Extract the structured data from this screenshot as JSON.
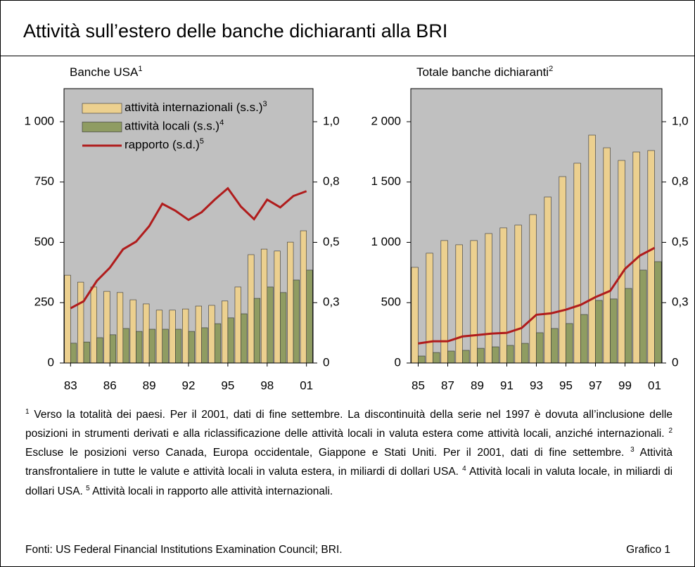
{
  "page_title": "Attività sull’estero delle banche dichiaranti alla BRI",
  "chart_data": [
    {
      "type": "bar-line",
      "title": "Banche USA",
      "title_note": "1",
      "legend": "upper left",
      "categories": [
        "83",
        null,
        null,
        "86",
        null,
        null,
        "89",
        null,
        null,
        "92",
        null,
        null,
        "95",
        null,
        null,
        "98",
        null,
        null,
        "01"
      ],
      "series": [
        {
          "name": "attività internazionali (s.s.)",
          "note": "3",
          "color": "#ecd08f",
          "kind": "bar",
          "values": [
            364,
            335,
            315,
            297,
            292,
            262,
            245,
            219,
            219,
            224,
            236,
            239,
            257,
            315,
            449,
            472,
            464,
            501,
            548
          ]
        },
        {
          "name": "attività locali (s.s.)",
          "note": "4",
          "color": "#8f9c62",
          "kind": "bar",
          "values": [
            82,
            87,
            105,
            117,
            143,
            131,
            140,
            140,
            140,
            131,
            146,
            163,
            187,
            204,
            268,
            315,
            292,
            344,
            385
          ]
        },
        {
          "name": "rapporto (s.d.)",
          "note": "5",
          "color": "#b01c1c",
          "kind": "line",
          "axis": "y2",
          "values": [
            0.227,
            0.256,
            0.34,
            0.395,
            0.471,
            0.503,
            0.567,
            0.66,
            0.631,
            0.593,
            0.625,
            0.677,
            0.724,
            0.648,
            0.596,
            0.677,
            0.645,
            0.692,
            0.712
          ]
        }
      ],
      "ylim": [
        0,
        1137
      ],
      "yticks": [
        0,
        250,
        500,
        750,
        {
          "value": 1000,
          "label": "1 000"
        }
      ],
      "y2lim": [
        0,
        1.137
      ],
      "y2ticks": [
        0,
        {
          "value": 0.25,
          "label": "0,3"
        },
        {
          "value": 0.5,
          "label": "0,5"
        },
        {
          "value": 0.75,
          "label": "0,8"
        },
        {
          "value": 1,
          "label": "1,0"
        }
      ]
    },
    {
      "type": "bar-line",
      "title": "Totale banche dichiaranti",
      "title_note": "2",
      "categories": [
        "85",
        null,
        "87",
        null,
        "89",
        null,
        "91",
        null,
        "93",
        null,
        "95",
        null,
        "97",
        null,
        "99",
        null,
        "01"
      ],
      "series": [
        {
          "color": "#ecd08f",
          "kind": "bar",
          "values": [
            793,
            910,
            1015,
            980,
            1015,
            1073,
            1120,
            1143,
            1230,
            1376,
            1545,
            1656,
            1889,
            1784,
            1679,
            1749,
            1761
          ]
        },
        {
          "color": "#8f9c62",
          "kind": "bar",
          "values": [
            58,
            87,
            99,
            105,
            122,
            134,
            146,
            163,
            251,
            286,
            327,
            402,
            519,
            531,
            618,
            770,
            840
          ]
        },
        {
          "color": "#b01c1c",
          "kind": "line",
          "axis": "y2",
          "values": [
            0.081,
            0.09,
            0.09,
            0.11,
            0.116,
            0.122,
            0.125,
            0.145,
            0.2,
            0.206,
            0.221,
            0.241,
            0.273,
            0.299,
            0.39,
            0.445,
            0.477
          ]
        }
      ],
      "ylim": [
        0,
        2274
      ],
      "yticks": [
        0,
        500,
        {
          "value": 1000,
          "label": "1 000"
        },
        {
          "value": 1500,
          "label": "1 500"
        },
        {
          "value": 2000,
          "label": "2 000"
        }
      ],
      "y2lim": [
        0,
        1.137
      ],
      "y2ticks": [
        0,
        {
          "value": 0.25,
          "label": "0,3"
        },
        {
          "value": 0.5,
          "label": "0,5"
        },
        {
          "value": 0.75,
          "label": "0,8"
        },
        {
          "value": 1,
          "label": "1,0"
        }
      ]
    }
  ],
  "notes": [
    {
      "num": "1",
      "text": "Verso la totalità dei paesi. Per il 2001, dati di fine settembre. La discontinuità della serie nel 1997 è dovuta all’inclusione delle posizioni in strumenti derivati e alla riclassificazione delle attività locali in valuta estera come attività locali, anziché internazionali."
    },
    {
      "num": "2",
      "text": "Escluse le posizioni verso Canada, Europa occidentale, Giappone e Stati Uniti. Per il 2001, dati di fine settembre."
    },
    {
      "num": "3",
      "text": "Attività transfrontaliere in tutte le valute e attività locali in valuta estera, in miliardi di dollari USA."
    },
    {
      "num": "4",
      "text": "Attività locali in valuta locale, in miliardi di dollari USA."
    },
    {
      "num": "5",
      "text": "Attività locali in rapporto alle attività internazionali."
    }
  ],
  "source": "Fonti: US Federal Financial Institutions Examination Council; BRI.",
  "label": "Grafico 1"
}
